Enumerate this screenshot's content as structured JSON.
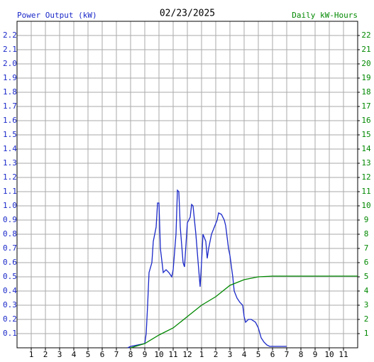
{
  "chart_data": {
    "type": "line",
    "title": "02/23/2025",
    "y_label": "Power Output (kW)",
    "y2_label": "Daily kW-Hours",
    "grid": true,
    "xlim": [
      0,
      24
    ],
    "xticks": [
      1,
      2,
      3,
      4,
      5,
      6,
      7,
      8,
      9,
      10,
      11,
      12,
      {
        "value": 13,
        "label": "1"
      },
      {
        "value": 14,
        "label": "2"
      },
      {
        "value": 15,
        "label": "3"
      },
      {
        "value": 16,
        "label": "4"
      },
      {
        "value": 17,
        "label": "5"
      },
      {
        "value": 18,
        "label": "6"
      },
      {
        "value": 19,
        "label": "7"
      },
      {
        "value": 20,
        "label": "8"
      },
      {
        "value": 21,
        "label": "9"
      },
      {
        "value": 22,
        "label": "10"
      },
      {
        "value": 23,
        "label": "11"
      }
    ],
    "ylim": [
      0,
      2.3
    ],
    "yticks": [
      0.1,
      0.2,
      0.3,
      0.4,
      0.5,
      0.6,
      0.7,
      0.8,
      0.9,
      {
        "value": 1,
        "label": "1.0"
      },
      1.1,
      1.2,
      1.3,
      1.4,
      1.5,
      1.6,
      1.7,
      1.8,
      1.9,
      {
        "value": 2,
        "label": "2.0"
      },
      2.1,
      2.2
    ],
    "y2lim": [
      0,
      23
    ],
    "y2ticks": [
      1,
      2,
      3,
      4,
      5,
      6,
      7,
      8,
      9,
      10,
      11,
      12,
      13,
      14,
      15,
      16,
      17,
      18,
      19,
      20,
      21,
      22
    ],
    "series": [
      {
        "color": "#1a28c8",
        "x": [
          7.8,
          8.0,
          8.5,
          9.0,
          9.1,
          9.2,
          9.3,
          9.5,
          9.6,
          9.8,
          9.9,
          10.0,
          10.1,
          10.3,
          10.5,
          10.7,
          10.9,
          11.0,
          11.2,
          11.3,
          11.4,
          11.5,
          11.7,
          11.8,
          12.0,
          12.2,
          12.3,
          12.4,
          12.6,
          12.8,
          12.9,
          13.0,
          13.1,
          13.3,
          13.4,
          13.5,
          13.7,
          13.9,
          14.1,
          14.2,
          14.4,
          14.6,
          14.7,
          14.9,
          15.0,
          15.2,
          15.3,
          15.5,
          15.7,
          15.9,
          16.0,
          16.1,
          16.3,
          16.5,
          16.8,
          17.0,
          17.2,
          17.4,
          17.6,
          17.8,
          18.0,
          19.0
        ],
        "values": [
          0,
          0.01,
          0.02,
          0.03,
          0.1,
          0.3,
          0.53,
          0.6,
          0.75,
          0.85,
          1.02,
          1.02,
          0.7,
          0.53,
          0.55,
          0.53,
          0.5,
          0.55,
          0.8,
          1.11,
          1.1,
          0.85,
          0.6,
          0.57,
          0.88,
          0.92,
          1.01,
          1.0,
          0.8,
          0.55,
          0.43,
          0.6,
          0.8,
          0.75,
          0.63,
          0.7,
          0.8,
          0.85,
          0.9,
          0.95,
          0.94,
          0.9,
          0.86,
          0.7,
          0.65,
          0.5,
          0.4,
          0.35,
          0.32,
          0.3,
          0.22,
          0.18,
          0.2,
          0.2,
          0.18,
          0.14,
          0.07,
          0.04,
          0.02,
          0.01,
          0.01,
          0.01
        ]
      },
      {
        "color": "#008800",
        "axis": "y2",
        "x": [
          8.0,
          9.0,
          10.0,
          11.0,
          12.0,
          13.0,
          14.0,
          15.0,
          16.0,
          17.0,
          18.0,
          24.0
        ],
        "values": [
          0,
          0.3,
          0.9,
          1.4,
          2.2,
          3.0,
          3.6,
          4.4,
          4.8,
          5.0,
          5.05,
          5.05
        ]
      }
    ]
  }
}
